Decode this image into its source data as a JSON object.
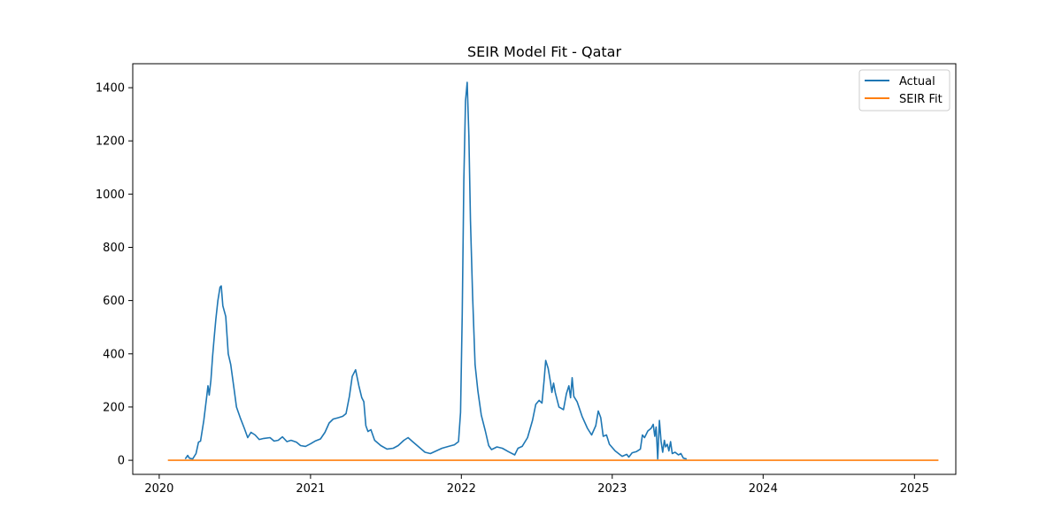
{
  "chart_data": {
    "type": "line",
    "title": "SEIR Model Fit - Qatar",
    "xlabel": "",
    "ylabel": "",
    "x_type": "date",
    "xlim": [
      "2019-10-29",
      "2025-04-11"
    ],
    "ylim": [
      -53,
      1490
    ],
    "x_ticks": [
      "2020-01-01",
      "2021-01-01",
      "2022-01-01",
      "2023-01-01",
      "2024-01-01",
      "2025-01-01"
    ],
    "x_tick_labels": [
      "2020",
      "2021",
      "2022",
      "2023",
      "2024",
      "2025"
    ],
    "y_ticks": [
      0,
      200,
      400,
      600,
      800,
      1000,
      1200,
      1400
    ],
    "y_tick_labels": [
      "0",
      "200",
      "400",
      "600",
      "800",
      "1000",
      "1200",
      "1400"
    ],
    "grid": false,
    "legend_position": "top-right",
    "series": [
      {
        "name": "Actual",
        "color": "#1f77b4",
        "points": [
          [
            "2020-03-04",
            5
          ],
          [
            "2020-03-10",
            18
          ],
          [
            "2020-03-14",
            8
          ],
          [
            "2020-03-22",
            5
          ],
          [
            "2020-03-30",
            25
          ],
          [
            "2020-04-05",
            68
          ],
          [
            "2020-04-10",
            72
          ],
          [
            "2020-04-18",
            150
          ],
          [
            "2020-04-25",
            240
          ],
          [
            "2020-04-28",
            280
          ],
          [
            "2020-05-01",
            245
          ],
          [
            "2020-05-05",
            300
          ],
          [
            "2020-05-09",
            390
          ],
          [
            "2020-05-13",
            460
          ],
          [
            "2020-05-17",
            530
          ],
          [
            "2020-05-22",
            600
          ],
          [
            "2020-05-27",
            650
          ],
          [
            "2020-05-30",
            655
          ],
          [
            "2020-06-03",
            580
          ],
          [
            "2020-06-10",
            540
          ],
          [
            "2020-06-16",
            400
          ],
          [
            "2020-06-22",
            360
          ],
          [
            "2020-06-30",
            270
          ],
          [
            "2020-07-06",
            200
          ],
          [
            "2020-07-15",
            160
          ],
          [
            "2020-07-25",
            120
          ],
          [
            "2020-08-02",
            85
          ],
          [
            "2020-08-10",
            105
          ],
          [
            "2020-08-20",
            95
          ],
          [
            "2020-08-30",
            78
          ],
          [
            "2020-09-10",
            82
          ],
          [
            "2020-09-25",
            85
          ],
          [
            "2020-10-05",
            72
          ],
          [
            "2020-10-15",
            75
          ],
          [
            "2020-10-25",
            88
          ],
          [
            "2020-11-05",
            70
          ],
          [
            "2020-11-15",
            75
          ],
          [
            "2020-11-28",
            68
          ],
          [
            "2020-12-08",
            55
          ],
          [
            "2020-12-20",
            52
          ],
          [
            "2021-01-01",
            62
          ],
          [
            "2021-01-12",
            72
          ],
          [
            "2021-01-25",
            80
          ],
          [
            "2021-02-05",
            105
          ],
          [
            "2021-02-15",
            140
          ],
          [
            "2021-02-25",
            155
          ],
          [
            "2021-03-10",
            160
          ],
          [
            "2021-03-20",
            165
          ],
          [
            "2021-03-28",
            175
          ],
          [
            "2021-04-05",
            240
          ],
          [
            "2021-04-12",
            315
          ],
          [
            "2021-04-20",
            340
          ],
          [
            "2021-04-28",
            280
          ],
          [
            "2021-05-05",
            235
          ],
          [
            "2021-05-10",
            220
          ],
          [
            "2021-05-15",
            130
          ],
          [
            "2021-05-20",
            108
          ],
          [
            "2021-05-27",
            115
          ],
          [
            "2021-06-05",
            75
          ],
          [
            "2021-06-20",
            55
          ],
          [
            "2021-07-05",
            42
          ],
          [
            "2021-07-20",
            45
          ],
          [
            "2021-08-01",
            55
          ],
          [
            "2021-08-15",
            75
          ],
          [
            "2021-08-25",
            85
          ],
          [
            "2021-09-05",
            70
          ],
          [
            "2021-09-20",
            50
          ],
          [
            "2021-10-05",
            30
          ],
          [
            "2021-10-18",
            25
          ],
          [
            "2021-11-01",
            35
          ],
          [
            "2021-11-15",
            45
          ],
          [
            "2021-12-01",
            52
          ],
          [
            "2021-12-15",
            58
          ],
          [
            "2021-12-25",
            70
          ],
          [
            "2021-12-30",
            180
          ],
          [
            "2022-01-03",
            550
          ],
          [
            "2022-01-07",
            1050
          ],
          [
            "2022-01-11",
            1350
          ],
          [
            "2022-01-15",
            1420
          ],
          [
            "2022-01-19",
            1220
          ],
          [
            "2022-01-23",
            900
          ],
          [
            "2022-01-28",
            620
          ],
          [
            "2022-02-03",
            360
          ],
          [
            "2022-02-10",
            260
          ],
          [
            "2022-02-18",
            170
          ],
          [
            "2022-02-28",
            110
          ],
          [
            "2022-03-08",
            55
          ],
          [
            "2022-03-15",
            40
          ],
          [
            "2022-03-28",
            50
          ],
          [
            "2022-04-10",
            45
          ],
          [
            "2022-04-25",
            32
          ],
          [
            "2022-05-10",
            20
          ],
          [
            "2022-05-18",
            45
          ],
          [
            "2022-05-28",
            52
          ],
          [
            "2022-06-10",
            85
          ],
          [
            "2022-06-22",
            150
          ],
          [
            "2022-06-30",
            210
          ],
          [
            "2022-07-08",
            225
          ],
          [
            "2022-07-15",
            215
          ],
          [
            "2022-07-20",
            300
          ],
          [
            "2022-07-24",
            375
          ],
          [
            "2022-07-30",
            345
          ],
          [
            "2022-08-05",
            290
          ],
          [
            "2022-08-08",
            255
          ],
          [
            "2022-08-12",
            290
          ],
          [
            "2022-08-16",
            255
          ],
          [
            "2022-08-25",
            200
          ],
          [
            "2022-09-05",
            190
          ],
          [
            "2022-09-12",
            250
          ],
          [
            "2022-09-18",
            280
          ],
          [
            "2022-09-22",
            235
          ],
          [
            "2022-09-26",
            310
          ],
          [
            "2022-09-30",
            240
          ],
          [
            "2022-10-08",
            220
          ],
          [
            "2022-10-20",
            165
          ],
          [
            "2022-11-02",
            120
          ],
          [
            "2022-11-12",
            95
          ],
          [
            "2022-11-22",
            130
          ],
          [
            "2022-11-28",
            185
          ],
          [
            "2022-12-04",
            160
          ],
          [
            "2022-12-10",
            90
          ],
          [
            "2022-12-18",
            95
          ],
          [
            "2022-12-25",
            60
          ],
          [
            "2023-01-08",
            35
          ],
          [
            "2023-01-25",
            15
          ],
          [
            "2023-02-05",
            22
          ],
          [
            "2023-02-10",
            12
          ],
          [
            "2023-02-18",
            28
          ],
          [
            "2023-02-28",
            32
          ],
          [
            "2023-03-10",
            42
          ],
          [
            "2023-03-15",
            95
          ],
          [
            "2023-03-20",
            85
          ],
          [
            "2023-03-28",
            110
          ],
          [
            "2023-04-05",
            120
          ],
          [
            "2023-04-10",
            135
          ],
          [
            "2023-04-14",
            90
          ],
          [
            "2023-04-17",
            125
          ],
          [
            "2023-04-21",
            5
          ],
          [
            "2023-04-25",
            150
          ],
          [
            "2023-04-29",
            70
          ],
          [
            "2023-05-03",
            30
          ],
          [
            "2023-05-07",
            75
          ],
          [
            "2023-05-10",
            50
          ],
          [
            "2023-05-14",
            60
          ],
          [
            "2023-05-18",
            35
          ],
          [
            "2023-05-22",
            70
          ],
          [
            "2023-05-26",
            25
          ],
          [
            "2023-06-02",
            30
          ],
          [
            "2023-06-10",
            20
          ],
          [
            "2023-06-16",
            25
          ],
          [
            "2023-06-22",
            8
          ],
          [
            "2023-06-30",
            5
          ]
        ]
      },
      {
        "name": "SEIR Fit",
        "color": "#ff7f0e",
        "points": [
          [
            "2020-01-22",
            0
          ],
          [
            "2025-02-28",
            0
          ]
        ]
      }
    ]
  }
}
